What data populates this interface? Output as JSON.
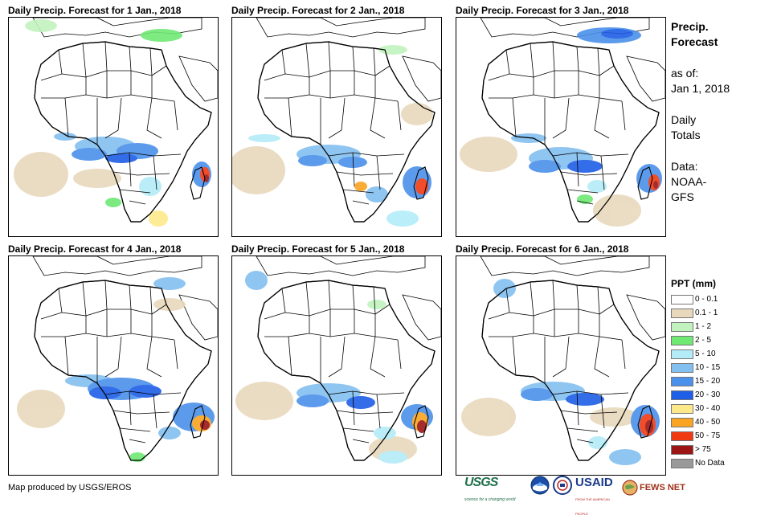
{
  "panels": [
    {
      "title": "Daily Precip. Forecast for 1 Jan., 2018"
    },
    {
      "title": "Daily Precip. Forecast for 2 Jan., 2018"
    },
    {
      "title": "Daily Precip. Forecast for 3 Jan., 2018"
    },
    {
      "title": "Daily Precip. Forecast for 4 Jan., 2018"
    },
    {
      "title": "Daily Precip. Forecast for 5 Jan., 2018"
    },
    {
      "title": "Daily Precip. Forecast for 6 Jan., 2018"
    }
  ],
  "info": {
    "heading_line1": "Precip.",
    "heading_line2": "Forecast",
    "asof_label": "as of:",
    "asof_date": "Jan 1, 2018",
    "totals_line1": "Daily",
    "totals_line2": "Totals",
    "data_label": "Data:",
    "data_line1": "NOAA-",
    "data_line2": "GFS"
  },
  "legend": {
    "title": "PPT (mm)",
    "items": [
      {
        "label": "0 - 0.1",
        "color": "#ffffff"
      },
      {
        "label": "0.1 - 1",
        "color": "#e8d9bc"
      },
      {
        "label": "1 - 2",
        "color": "#c2f3bf"
      },
      {
        "label": "2 - 5",
        "color": "#6fe874"
      },
      {
        "label": "5 - 10",
        "color": "#b3ecf7"
      },
      {
        "label": "10 - 15",
        "color": "#83bff0"
      },
      {
        "label": "15 - 20",
        "color": "#4b90ea"
      },
      {
        "label": "20 - 30",
        "color": "#1f5ee6"
      },
      {
        "label": "30 - 40",
        "color": "#fde98a"
      },
      {
        "label": "40 - 50",
        "color": "#f9a521"
      },
      {
        "label": "50 - 75",
        "color": "#f03a12"
      },
      {
        "label": "> 75",
        "color": "#9c1616"
      },
      {
        "label": "No Data",
        "color": "#999999"
      }
    ]
  },
  "footer": {
    "credit": "Map produced by USGS/EROS"
  },
  "logos": {
    "usgs": "USGS",
    "usgs_tagline": "science for a changing world",
    "usaid": "USAID",
    "usaid_tagline": "FROM THE AMERICAN PEOPLE",
    "fews": "FEWS NET"
  }
}
